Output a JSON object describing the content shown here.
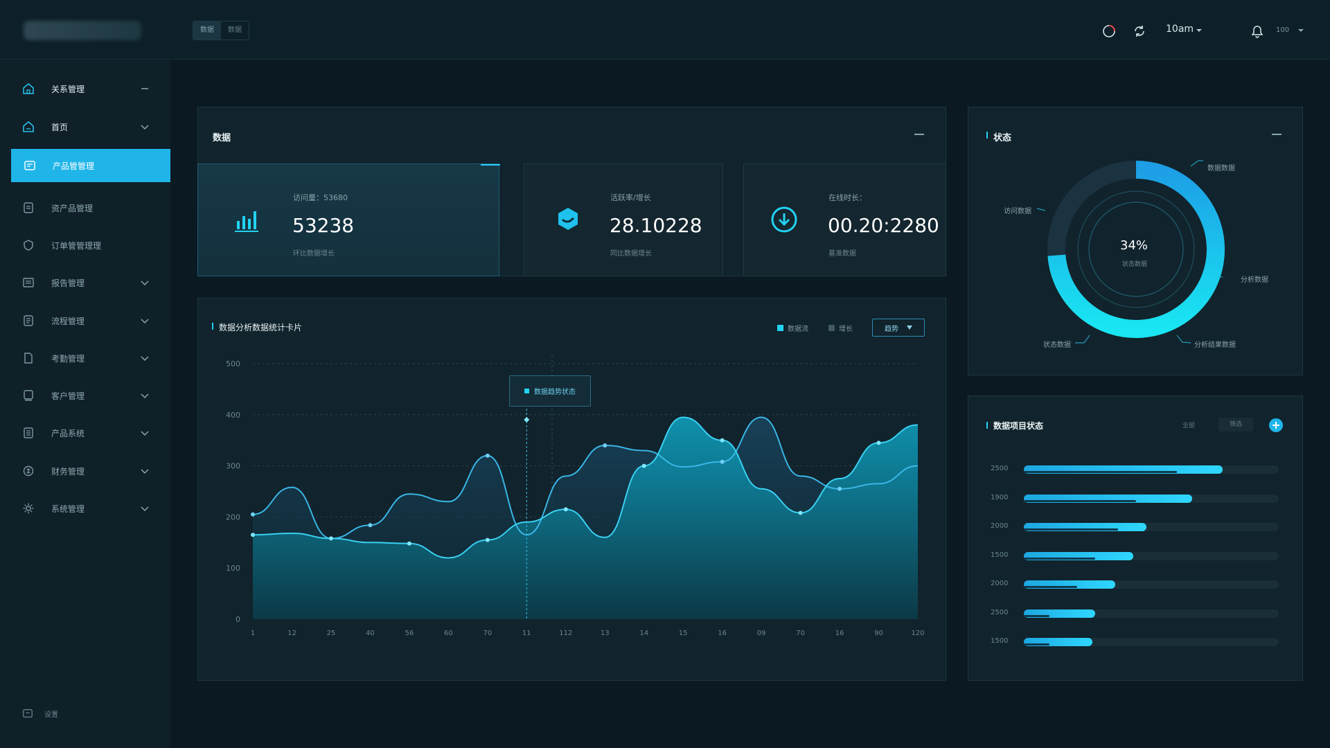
{
  "colors": {
    "accent": "#1fb5e8",
    "cyan": "#17d6ee",
    "bg": "#0b1a22",
    "panel": "#11232c",
    "light_series": "#3ad0f2",
    "dark_series": "#3ab6e6"
  },
  "topbar": {
    "tabs": [
      "数据",
      "数据"
    ],
    "user": "10am",
    "user2": "100",
    "icons": [
      "notification-ring-icon",
      "refresh-icon",
      "chevron-down-icon",
      "bell-icon",
      "chevron-down-icon"
    ]
  },
  "sidebar": {
    "items": [
      {
        "label": "关系管理",
        "icon": "home-icon",
        "control": "minus"
      },
      {
        "label": "首页",
        "icon": "home-icon",
        "control": "chevron"
      },
      {
        "label": "产品管管理",
        "icon": "product-icon",
        "control": "none"
      },
      {
        "label": "资产品管理",
        "icon": "file-icon",
        "control": "none"
      },
      {
        "label": "订单管管理理",
        "icon": "shield-icon",
        "control": "none"
      },
      {
        "label": "报告管理",
        "icon": "report-icon",
        "control": "chevron"
      },
      {
        "label": "流程管理",
        "icon": "flow-icon",
        "control": "chevron"
      },
      {
        "label": "考勤管理",
        "icon": "document-icon",
        "control": "chevron"
      },
      {
        "label": "客户管理",
        "icon": "user-icon",
        "control": "chevron"
      },
      {
        "label": "产品系统",
        "icon": "list-icon",
        "control": "chevron"
      },
      {
        "label": "财务管理",
        "icon": "finance-icon",
        "control": "chevron"
      },
      {
        "label": "系统管理",
        "icon": "gear-icon",
        "control": "chevron"
      }
    ],
    "footer": "设置"
  },
  "data_panel": {
    "title": "数据",
    "stats": [
      {
        "label": "访问量：53680",
        "value": "53238",
        "sub": "环比数据增长",
        "icon": "bar-chart-icon"
      },
      {
        "label": "活跃率/增长",
        "value": "28.10228",
        "sub": "同比数据增长",
        "icon": "cube-icon"
      },
      {
        "label": "在线时长：",
        "value": "00.20:2280",
        "sub": "基准数据",
        "icon": "add-circle-icon"
      }
    ]
  },
  "chart_panel": {
    "title": "数据分析数据统计卡片",
    "legend": [
      "数据流",
      "增长"
    ],
    "dropdown": "趋势",
    "tooltip": "数据趋势状态"
  },
  "chart_data": {
    "type": "area",
    "title": "数据分析数据统计卡片",
    "categories": [
      "1",
      "12",
      "25",
      "40",
      "56",
      "60",
      "70",
      "11",
      "112",
      "13",
      "14",
      "15",
      "16",
      "09",
      "70",
      "16",
      "90",
      "120"
    ],
    "y_ticks": [
      0,
      100,
      200,
      300,
      400,
      500
    ],
    "ylim": [
      0,
      500
    ],
    "grid": true,
    "legend_position": "top-right",
    "series": [
      {
        "name": "数据流",
        "values": [
          165,
          168,
          158,
          150,
          148,
          120,
          155,
          190,
          215,
          160,
          300,
          395,
          350,
          255,
          208,
          275,
          345,
          380
        ]
      },
      {
        "name": "增长",
        "values": [
          205,
          258,
          158,
          184,
          245,
          230,
          320,
          165,
          280,
          340,
          330,
          298,
          308,
          395,
          280,
          255,
          265,
          300
        ]
      }
    ]
  },
  "status_panel": {
    "title": "状态",
    "percent": "34%",
    "center_sub": "状态数据",
    "value_pct": 34,
    "labels": [
      "数据数据",
      "访问数据",
      "分析数据",
      "状态数据",
      "分析结果数据"
    ]
  },
  "bars_panel": {
    "title": "数据项目状态",
    "action1": "全部",
    "action2": "筛选",
    "rows": [
      {
        "label": "2500",
        "value": 0.78,
        "sub": 0.6
      },
      {
        "label": "1900",
        "value": 0.66,
        "sub": 0.44
      },
      {
        "label": "2000",
        "value": 0.48,
        "sub": 0.37
      },
      {
        "label": "1500",
        "value": 0.43,
        "sub": 0.28
      },
      {
        "label": "2000",
        "value": 0.36,
        "sub": 0.21
      },
      {
        "label": "2500",
        "value": 0.28,
        "sub": 0.1
      },
      {
        "label": "1500",
        "value": 0.27,
        "sub": 0.1
      }
    ]
  }
}
